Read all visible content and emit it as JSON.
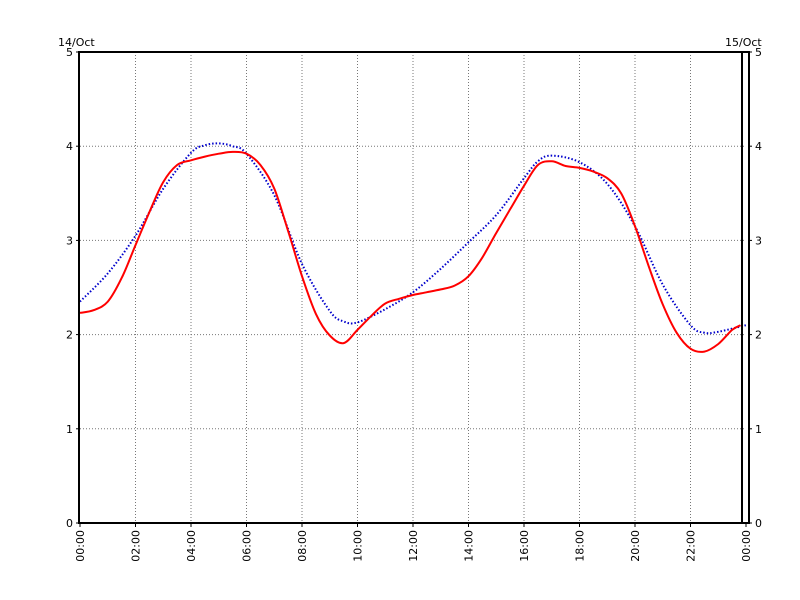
{
  "chart_data": {
    "type": "line",
    "title": "",
    "xlabel": "",
    "ylabel": "",
    "ylim": [
      0,
      5
    ],
    "xlim": [
      0,
      24
    ],
    "y_ticks": [
      "0",
      "1",
      "2",
      "3",
      "4",
      "5"
    ],
    "x_ticks": [
      "00:00",
      "02:00",
      "04:00",
      "06:00",
      "08:00",
      "10:00",
      "12:00",
      "14:00",
      "16:00",
      "18:00",
      "20:00",
      "22:00",
      "00:00"
    ],
    "date_left": "14/Oct",
    "date_right": "15/Oct",
    "current_time_marker": 23.8,
    "grid": true,
    "series": [
      {
        "color": "#0000cc",
        "style": "dotted",
        "x": [
          0,
          1,
          2,
          3,
          4,
          4.5,
          5,
          5.5,
          6,
          7,
          8,
          9,
          9.5,
          10,
          11,
          12,
          13,
          14,
          15,
          16,
          16.5,
          17,
          18,
          19,
          20,
          21,
          22,
          22.5,
          23,
          24
        ],
        "y": [
          2.35,
          2.65,
          3.05,
          3.55,
          3.93,
          4.01,
          4.03,
          4.0,
          3.92,
          3.48,
          2.75,
          2.25,
          2.14,
          2.13,
          2.27,
          2.45,
          2.7,
          2.98,
          3.27,
          3.66,
          3.84,
          3.9,
          3.83,
          3.6,
          3.15,
          2.53,
          2.1,
          2.02,
          2.03,
          2.1
        ]
      },
      {
        "color": "#ff0000",
        "style": "solid",
        "x": [
          0,
          0.5,
          1,
          1.5,
          2,
          2.5,
          3,
          3.5,
          4,
          4.5,
          5,
          5.5,
          6,
          6.5,
          7,
          7.5,
          8,
          8.5,
          9,
          9.5,
          10,
          10.5,
          11,
          11.5,
          12,
          12.5,
          13,
          13.5,
          14,
          14.5,
          15,
          15.5,
          16,
          16.5,
          17,
          17.5,
          18,
          18.5,
          19,
          19.5,
          20,
          20.5,
          21,
          21.5,
          22,
          22.5,
          23,
          23.5,
          23.8
        ],
        "y": [
          2.23,
          2.26,
          2.35,
          2.6,
          2.95,
          3.3,
          3.62,
          3.8,
          3.85,
          3.89,
          3.92,
          3.94,
          3.92,
          3.8,
          3.55,
          3.1,
          2.62,
          2.22,
          1.99,
          1.91,
          2.05,
          2.2,
          2.33,
          2.38,
          2.42,
          2.45,
          2.48,
          2.52,
          2.62,
          2.82,
          3.08,
          3.33,
          3.58,
          3.8,
          3.84,
          3.79,
          3.77,
          3.73,
          3.66,
          3.5,
          3.15,
          2.72,
          2.32,
          2.02,
          1.85,
          1.82,
          1.9,
          2.05,
          2.1
        ]
      }
    ]
  }
}
